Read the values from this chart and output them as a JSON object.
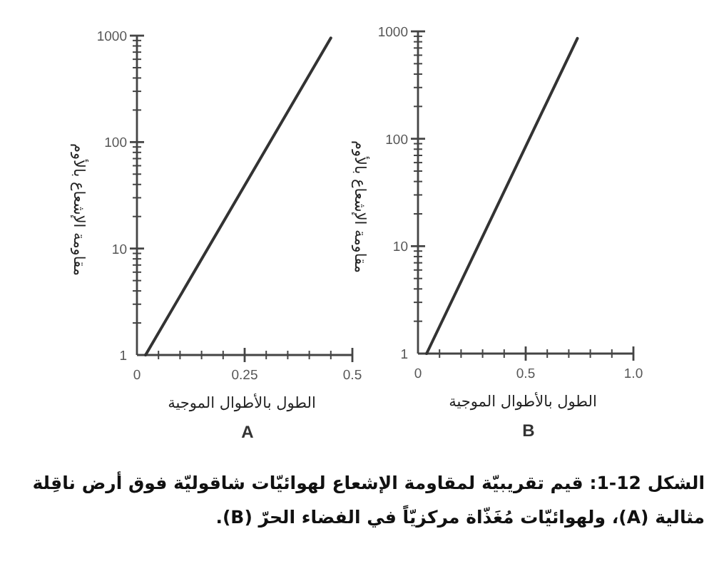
{
  "chart_data": [
    {
      "type": "line",
      "x": [
        0.02,
        0.45
      ],
      "values": [
        1,
        950
      ],
      "color": "#333333",
      "xlim": [
        0,
        0.5
      ],
      "ylim": [
        1,
        1000
      ],
      "xticks": [
        0,
        0.25,
        0.5
      ],
      "yticks": [
        1,
        10,
        100,
        1000
      ],
      "log": "y",
      "grid": false,
      "marker": "none",
      "xlabel": "الطول بالأطوال الموجية",
      "ylabel": "مقاومة الإشعاع بالأوم",
      "annotations": [
        "A"
      ]
    },
    {
      "type": "line",
      "x": [
        0.04,
        0.74
      ],
      "values": [
        1,
        860
      ],
      "color": "#333333",
      "xlim": [
        0,
        1.0
      ],
      "ylim": [
        1,
        1000
      ],
      "xticks": [
        0,
        0.5,
        {
          "value": 1,
          "label": "1.0"
        }
      ],
      "yticks": [
        1,
        10,
        100,
        1000
      ],
      "log": "y",
      "grid": false,
      "marker": "none",
      "xlabel": "الطول بالأطوال الموجية",
      "ylabel": "مقاومة الإشعاع بالأوم",
      "annotations": [
        "B"
      ]
    },
    {
      "type": "other",
      "title": "الشكل 12-1: قيم تقريبيّة لمقاومة الإشعاع لهوائيّات شاقوليّة فوق أرض ناقِلة مثالية (A)، ولهوائيّات مُغَذّاة مركزيّاً في الفضاء الحرّ (B)."
    }
  ]
}
